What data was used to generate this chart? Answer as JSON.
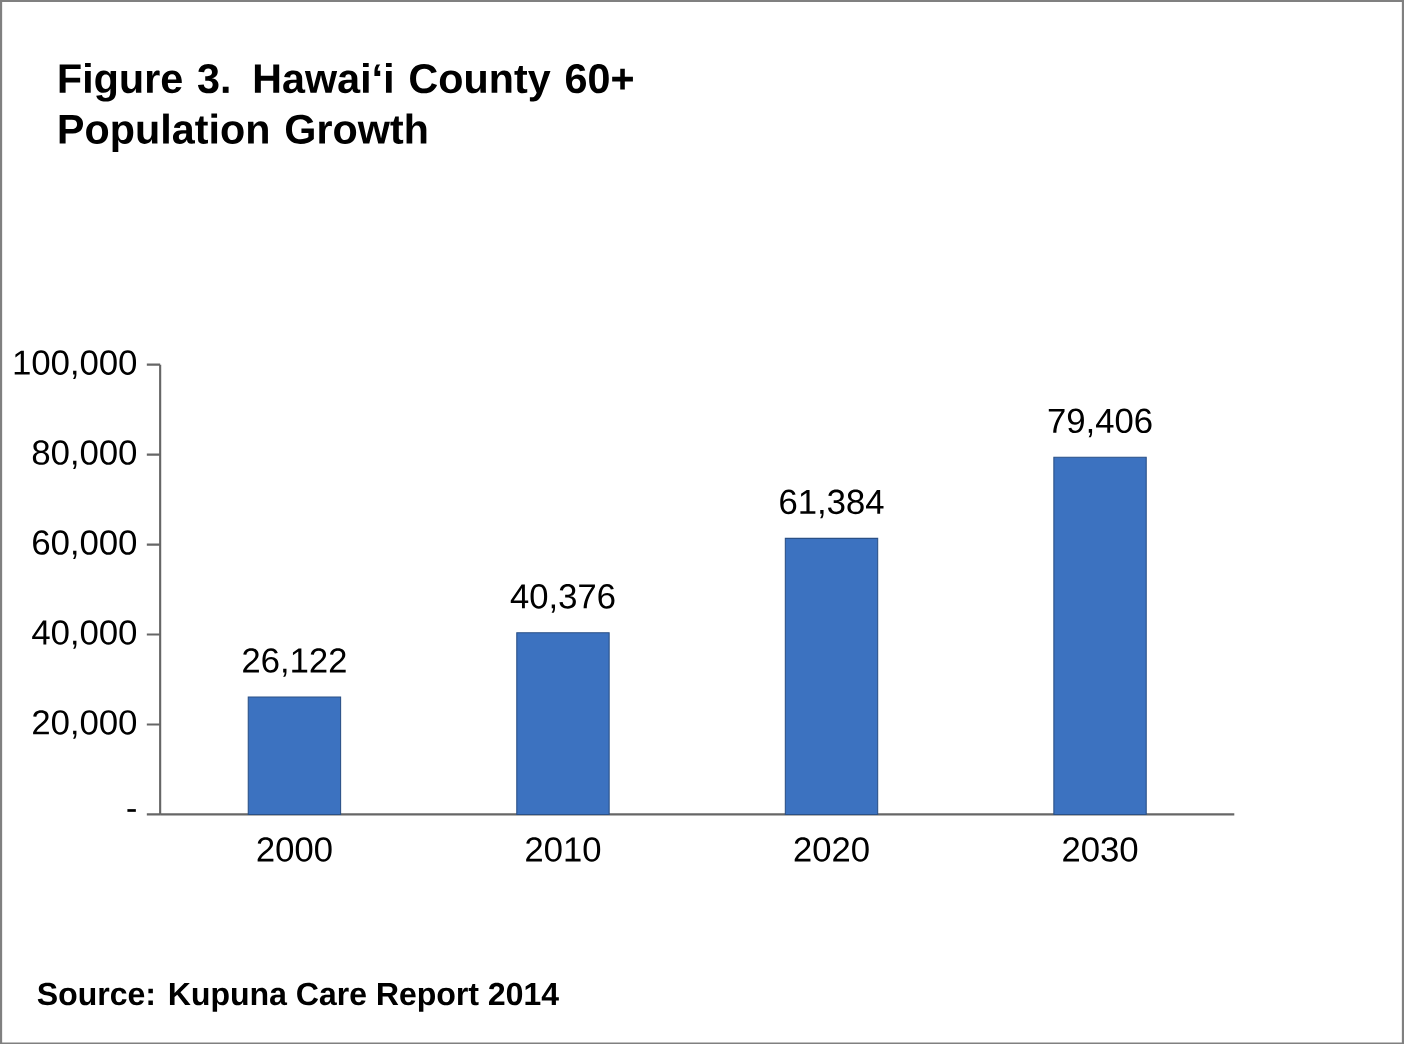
{
  "chart_data": {
    "type": "bar",
    "title": "Figure 3.  Hawai‘i County 60+ Population Growth",
    "categories": [
      "2000",
      "2010",
      "2020",
      "2030"
    ],
    "values": [
      26122,
      40376,
      61384,
      79406
    ],
    "color": "#3c72c0",
    "ylim": [
      0,
      100000
    ],
    "yticks": [
      {
        "value": 0,
        "label": "-"
      },
      {
        "value": 20000,
        "label": "20,000"
      },
      {
        "value": 40000,
        "label": "40,000"
      },
      {
        "value": 60000,
        "label": "60,000"
      },
      {
        "value": 80000,
        "label": "80,000"
      },
      {
        "value": 100000,
        "label": "100,000"
      }
    ],
    "value_labels": [
      "26,122",
      "40,376",
      "61,384",
      "79,406"
    ],
    "grid": false,
    "annotations": [
      "Source: Kupuna Care Report 2014"
    ]
  }
}
